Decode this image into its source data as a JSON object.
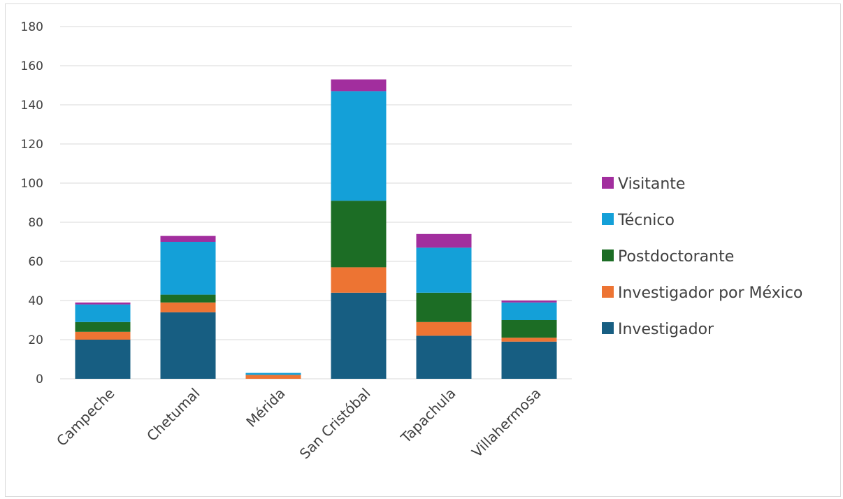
{
  "chart_data": {
    "type": "bar",
    "stacked": true,
    "title": "",
    "xlabel": "",
    "ylabel": "",
    "ylim": [
      0,
      180
    ],
    "yticks": [
      0,
      20,
      40,
      60,
      80,
      100,
      120,
      140,
      160,
      180
    ],
    "grid": true,
    "legend_position": "right",
    "categories": [
      "Campeche",
      "Chetumal",
      "Mérida",
      "San Cristóbal",
      "Tapachula",
      "Villahermosa"
    ],
    "series": [
      {
        "name": "Investigador",
        "color": "#175e82",
        "values": [
          20,
          34,
          0,
          44,
          22,
          19
        ]
      },
      {
        "name": "Investigador por México",
        "color": "#ed7433",
        "values": [
          4,
          5,
          2,
          13,
          7,
          2
        ]
      },
      {
        "name": "Postdoctorante",
        "color": "#1c6d25",
        "values": [
          5,
          4,
          0,
          34,
          15,
          9
        ]
      },
      {
        "name": "Técnico",
        "color": "#14a0d8",
        "values": [
          9,
          27,
          1,
          56,
          23,
          9
        ]
      },
      {
        "name": "Visitante",
        "color": "#a22e9e",
        "values": [
          1,
          3,
          0,
          6,
          7,
          1
        ]
      }
    ]
  }
}
